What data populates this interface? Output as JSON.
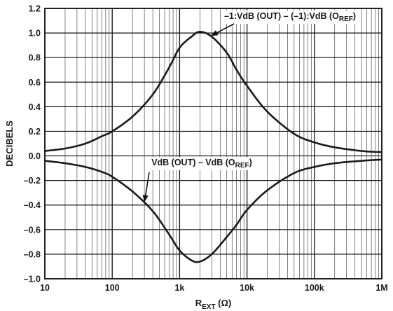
{
  "chart_data": {
    "type": "line",
    "xlabel": {
      "main": "R",
      "sub": "EXT",
      "unit": " (Ω)"
    },
    "ylabel": "DECIBELS",
    "x_scale": "log",
    "xlim": [
      10,
      1000000
    ],
    "ylim": [
      -1.0,
      1.2
    ],
    "grid": true,
    "x_ticks": [
      {
        "value": 10,
        "label": "10"
      },
      {
        "value": 100,
        "label": "100"
      },
      {
        "value": 1000,
        "label": "1k"
      },
      {
        "value": 10000,
        "label": "10k"
      },
      {
        "value": 100000,
        "label": "100k"
      },
      {
        "value": 1000000,
        "label": "1M"
      }
    ],
    "y_ticks": [
      {
        "value": 1.2,
        "label": "1.2"
      },
      {
        "value": 1.0,
        "label": "1.0"
      },
      {
        "value": 0.8,
        "label": "0.8"
      },
      {
        "value": 0.6,
        "label": "0.6"
      },
      {
        "value": 0.4,
        "label": "0.4"
      },
      {
        "value": 0.2,
        "label": "0.2"
      },
      {
        "value": 0.0,
        "label": "0.0"
      },
      {
        "value": -0.2,
        "label": "–0.2"
      },
      {
        "value": -0.4,
        "label": "–0.4"
      },
      {
        "value": -0.6,
        "label": "–0.6"
      },
      {
        "value": -0.8,
        "label": "–0.8"
      },
      {
        "value": -1.0,
        "label": "–1.0"
      }
    ],
    "series": [
      {
        "annotation": {
          "pre": "–1:VdB (OUT) – (–1):VdB (O",
          "sub": "REF",
          "post": ")"
        },
        "x": [
          10,
          20,
          40,
          70,
          100,
          200,
          400,
          700,
          1000,
          1500,
          2000,
          3000,
          5000,
          7000,
          10000,
          20000,
          50000,
          100000,
          200000,
          500000,
          1000000
        ],
        "y": [
          0.04,
          0.06,
          0.1,
          0.16,
          0.2,
          0.32,
          0.5,
          0.72,
          0.88,
          0.97,
          1.01,
          0.97,
          0.84,
          0.7,
          0.57,
          0.36,
          0.18,
          0.11,
          0.07,
          0.04,
          0.03
        ]
      },
      {
        "annotation": {
          "pre": "VdB (OUT) – VdB (O",
          "sub": "REF",
          "post": ")"
        },
        "x": [
          10,
          20,
          40,
          70,
          100,
          200,
          400,
          700,
          1000,
          1500,
          2000,
          3000,
          5000,
          7000,
          10000,
          20000,
          50000,
          100000,
          200000,
          500000,
          1000000
        ],
        "y": [
          -0.04,
          -0.06,
          -0.09,
          -0.13,
          -0.17,
          -0.29,
          -0.45,
          -0.64,
          -0.77,
          -0.85,
          -0.86,
          -0.8,
          -0.66,
          -0.56,
          -0.44,
          -0.28,
          -0.14,
          -0.09,
          -0.06,
          -0.04,
          -0.03
        ]
      }
    ]
  }
}
